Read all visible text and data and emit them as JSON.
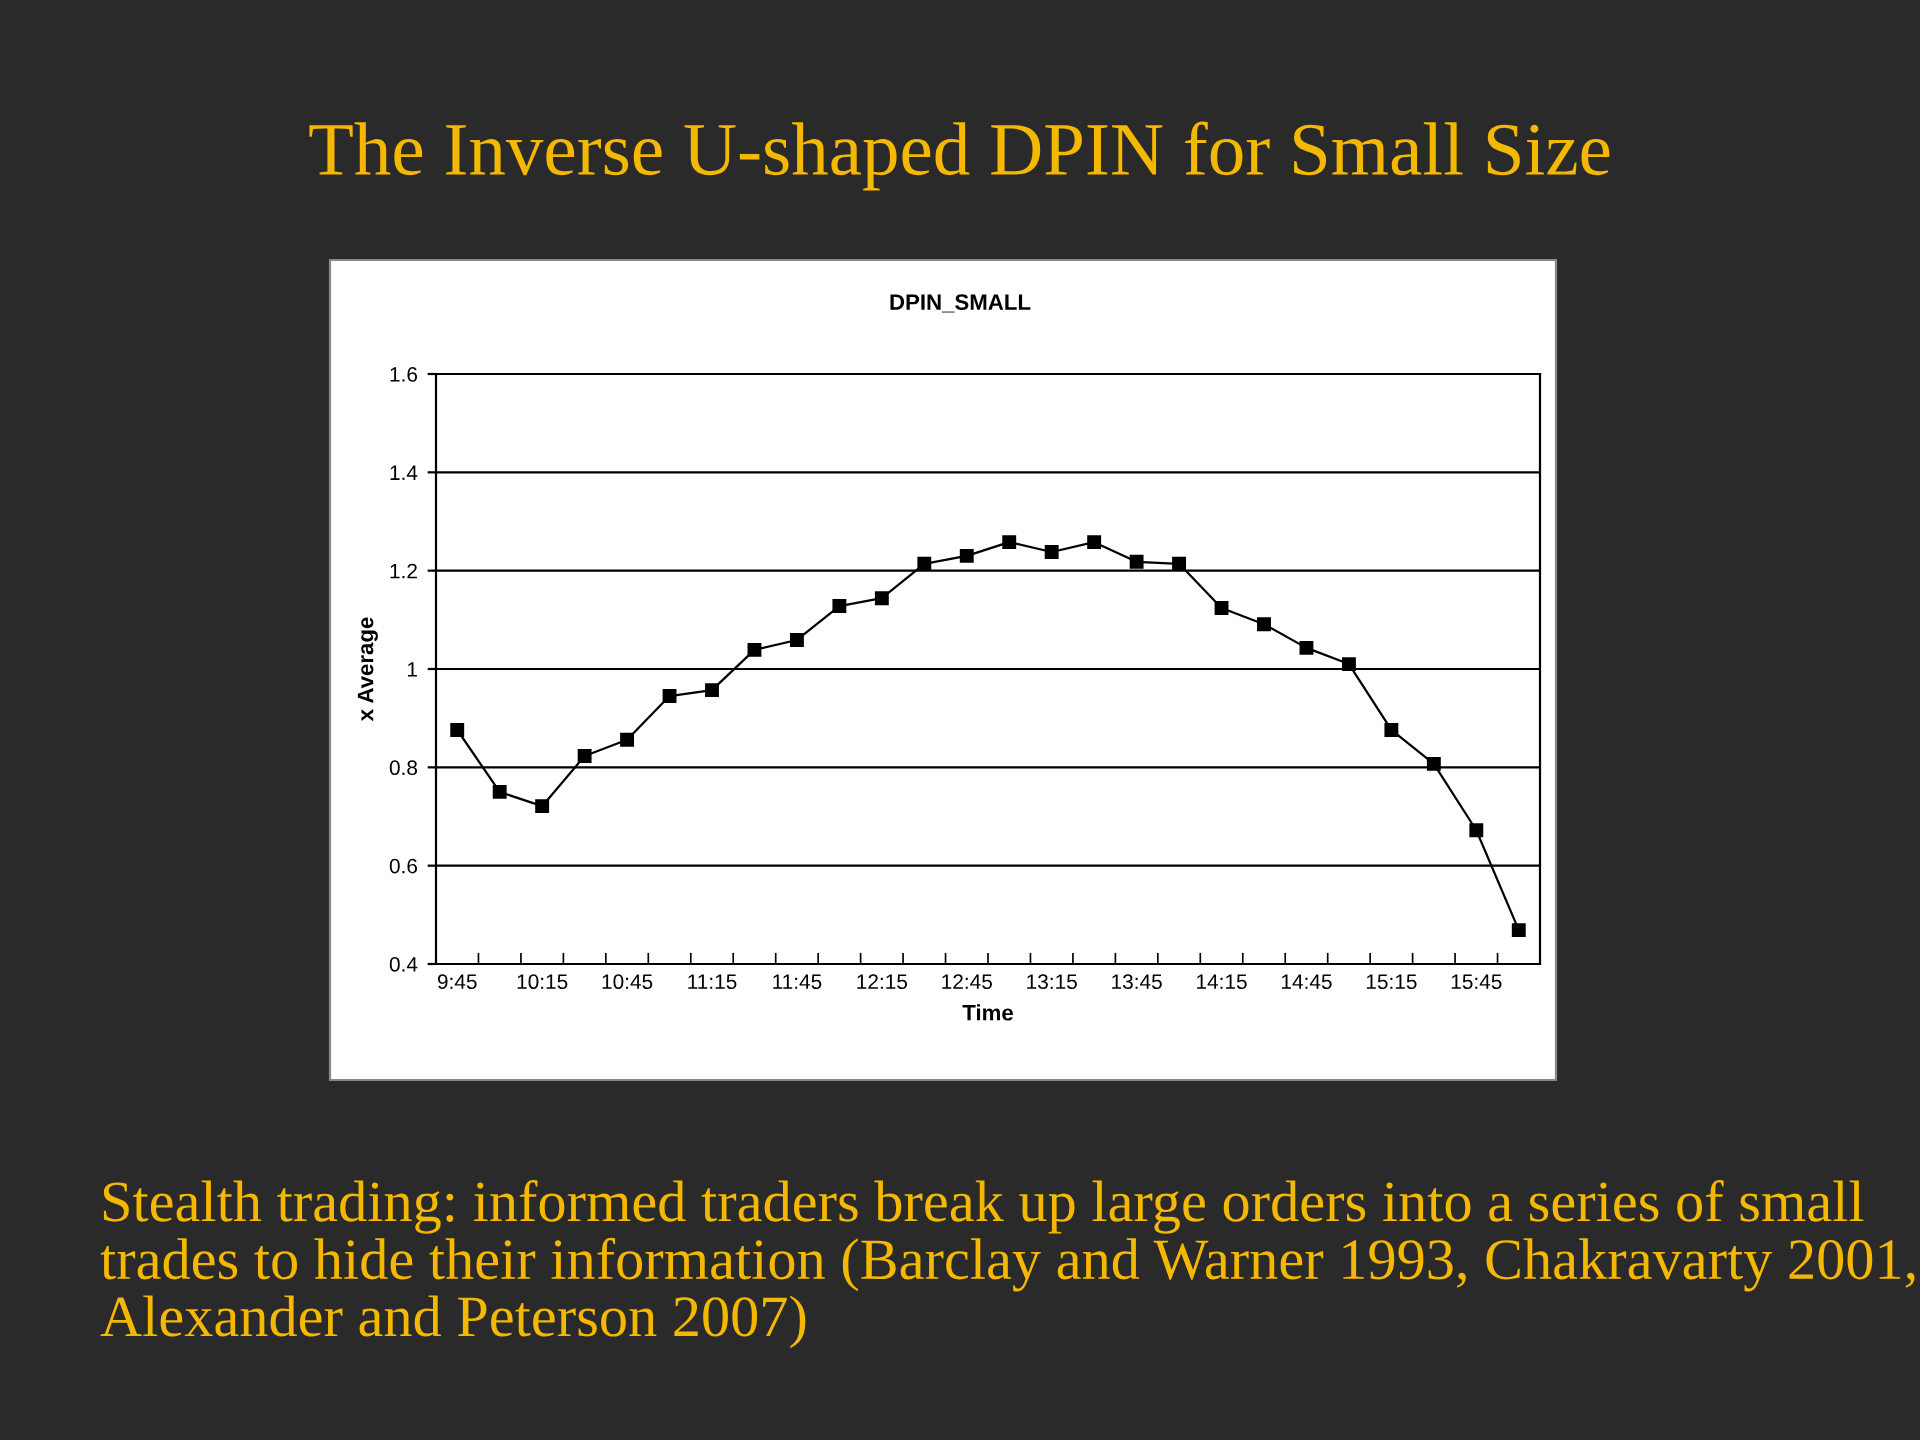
{
  "chart_data": {
    "type": "line",
    "title": "The Inverse U-shaped DPIN for Small Size",
    "subtitle": "DPIN_SMALL",
    "xlabel": "Time",
    "ylabel": "x Average",
    "categories": [
      "9:45",
      null,
      "10:15",
      null,
      "10:45",
      null,
      "11:15",
      null,
      "11:45",
      null,
      "12:15",
      null,
      "12:45",
      null,
      "13:15",
      null,
      "13:45",
      null,
      "14:15",
      null,
      "14:45",
      null,
      "15:15",
      null,
      "15:45",
      null
    ],
    "series": [
      {
        "color": "#000000",
        "values": [
          0.876,
          0.75,
          0.721,
          0.823,
          0.856,
          0.945,
          0.957,
          1.039,
          1.059,
          1.128,
          1.144,
          1.214,
          1.23,
          1.258,
          1.238,
          1.258,
          1.218,
          1.214,
          1.124,
          1.091,
          1.043,
          1.01,
          0.876,
          0.807,
          0.672,
          0.469
        ]
      }
    ],
    "ylim": [
      0.4,
      1.6
    ],
    "yticks": [
      0.4,
      0.6,
      0.8,
      {
        "value": 1.0,
        "label": "1"
      },
      1.2,
      1.4,
      1.6
    ],
    "grid": "y",
    "marker": "square",
    "line_style": "solid",
    "legend": false,
    "annotations": [
      "Stealth trading: informed traders break up large orders into a series of small trades to hide their information (Barclay and Warner 1993, Chakravarty 2001, Alexander and Peterson 2007)"
    ]
  }
}
